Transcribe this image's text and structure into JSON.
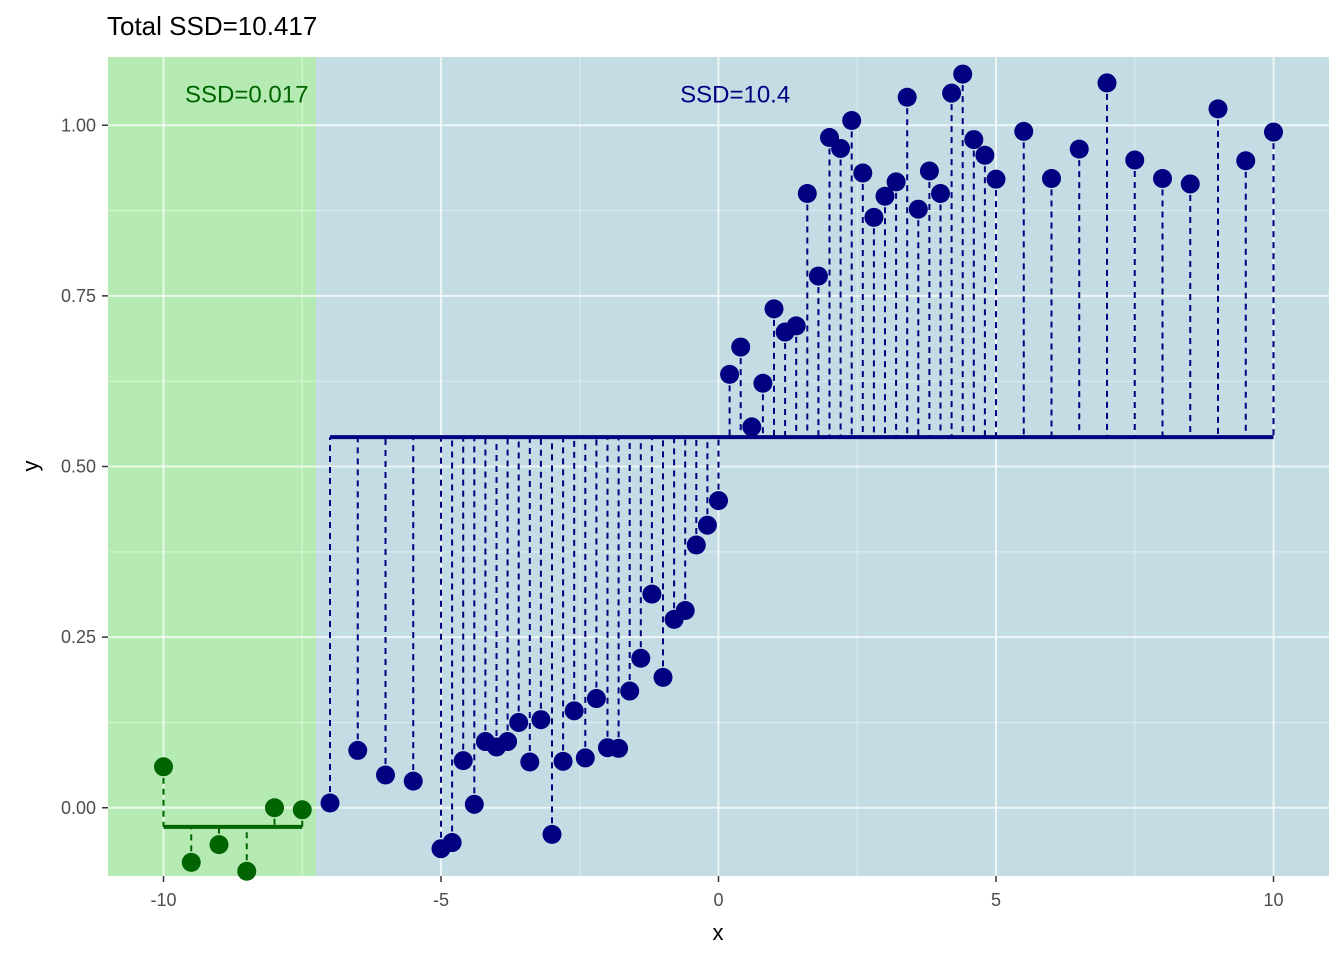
{
  "chart_data": {
    "type": "scatter",
    "title": "Total SSD=10.417",
    "xlabel": "x",
    "ylabel": "y",
    "xlim": [
      -11,
      11
    ],
    "ylim": [
      -0.1,
      1.1
    ],
    "x_ticks": [
      -10,
      -5,
      0,
      5,
      10
    ],
    "x_tick_labels": [
      "-10",
      "-5",
      "0",
      "5",
      "10"
    ],
    "y_ticks": [
      0,
      0.25,
      0.5,
      0.75,
      1.0
    ],
    "y_tick_labels": [
      "0.00",
      "0.25",
      "0.50",
      "0.75",
      "1.00"
    ],
    "grid": true,
    "panel_background": "#c4dde4",
    "regions": [
      {
        "x_range": [
          -11,
          -7.25
        ],
        "fill": "#b5ebb3",
        "fit_mean": -0.028,
        "fit_x_range": [
          -10,
          -7.5
        ],
        "color": "#006400",
        "label": "SSD=0.017",
        "label_x": -8.5,
        "label_y": 1.045,
        "points": [
          [
            -10.0,
            0.06
          ],
          [
            -9.5,
            -0.08
          ],
          [
            -9.0,
            -0.054
          ],
          [
            -8.5,
            -0.093
          ],
          [
            -8.0,
            0.0
          ],
          [
            -7.5,
            -0.003
          ]
        ]
      },
      {
        "x_range": [
          -7.25,
          11
        ],
        "fill": "#c4dde4",
        "fit_mean": 0.543,
        "fit_x_range": [
          -7,
          10
        ],
        "color": "#000080",
        "label": "SSD=10.4",
        "label_x": 0.3,
        "label_y": 1.045,
        "points": [
          [
            -7.0,
            0.007
          ],
          [
            -6.5,
            0.084
          ],
          [
            -6.0,
            0.048
          ],
          [
            -5.5,
            0.039
          ],
          [
            -5.0,
            -0.06
          ],
          [
            -4.8,
            -0.051
          ],
          [
            -4.6,
            0.069
          ],
          [
            -4.4,
            0.005
          ],
          [
            -4.2,
            0.097
          ],
          [
            -4.0,
            0.089
          ],
          [
            -3.8,
            0.097
          ],
          [
            -3.6,
            0.125
          ],
          [
            -3.4,
            0.067
          ],
          [
            -3.2,
            0.129
          ],
          [
            -3.0,
            -0.039
          ],
          [
            -2.8,
            0.068
          ],
          [
            -2.6,
            0.142
          ],
          [
            -2.4,
            0.073
          ],
          [
            -2.2,
            0.16
          ],
          [
            -2.0,
            0.088
          ],
          [
            -1.8,
            0.087
          ],
          [
            -1.6,
            0.171
          ],
          [
            -1.4,
            0.219
          ],
          [
            -1.2,
            0.313
          ],
          [
            -1.0,
            0.191
          ],
          [
            -0.8,
            0.276
          ],
          [
            -0.6,
            0.289
          ],
          [
            -0.4,
            0.385
          ],
          [
            -0.2,
            0.414
          ],
          [
            0.0,
            0.45
          ],
          [
            0.2,
            0.635
          ],
          [
            0.4,
            0.675
          ],
          [
            0.6,
            0.558
          ],
          [
            0.8,
            0.622
          ],
          [
            1.0,
            0.731
          ],
          [
            1.2,
            0.697
          ],
          [
            1.4,
            0.706
          ],
          [
            1.6,
            0.9
          ],
          [
            1.8,
            0.779
          ],
          [
            2.0,
            0.982
          ],
          [
            2.2,
            0.966
          ],
          [
            2.4,
            1.007
          ],
          [
            2.6,
            0.93
          ],
          [
            2.8,
            0.865
          ],
          [
            3.0,
            0.896
          ],
          [
            3.2,
            0.917
          ],
          [
            3.4,
            1.041
          ],
          [
            3.6,
            0.877
          ],
          [
            3.8,
            0.933
          ],
          [
            4.0,
            0.9
          ],
          [
            4.2,
            1.047
          ],
          [
            4.4,
            1.075
          ],
          [
            4.6,
            0.979
          ],
          [
            4.8,
            0.956
          ],
          [
            5.0,
            0.921
          ],
          [
            5.5,
            0.991
          ],
          [
            6.0,
            0.922
          ],
          [
            6.5,
            0.965
          ],
          [
            7.0,
            1.062
          ],
          [
            7.5,
            0.949
          ],
          [
            8.0,
            0.922
          ],
          [
            8.5,
            0.914
          ],
          [
            9.0,
            1.024
          ],
          [
            9.5,
            0.948
          ],
          [
            10.0,
            0.99
          ]
        ]
      }
    ]
  }
}
